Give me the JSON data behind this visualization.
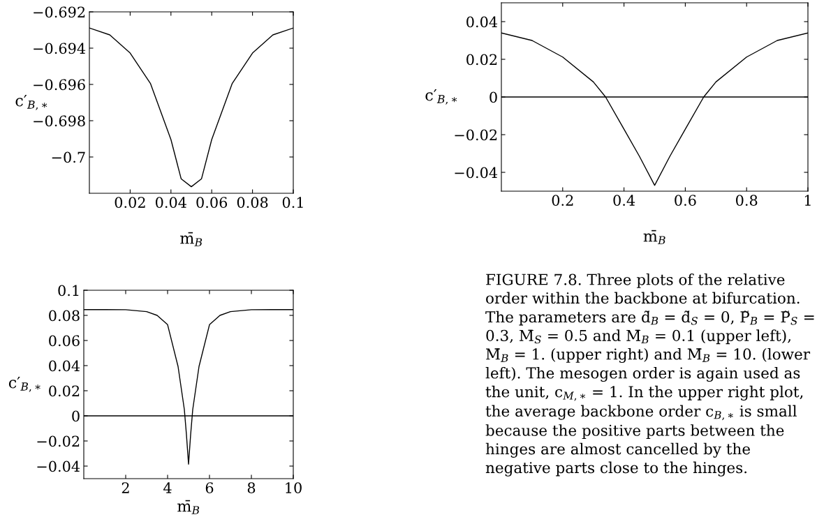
{
  "chart_data": [
    {
      "type": "line",
      "xlabel": "m̄$_{B}$",
      "ylabel": "c′$_{B,∗}$",
      "x": [
        0,
        0.01,
        0.02,
        0.03,
        0.04,
        0.045,
        0.05,
        0.055,
        0.06,
        0.07,
        0.08,
        0.09,
        0.1
      ],
      "series": [
        {
          "color": "#000000",
          "values": [
            -0.69289,
            -0.69327,
            -0.69427,
            -0.69596,
            -0.69904,
            -0.7012,
            -0.70164,
            -0.7012,
            -0.69904,
            -0.69596,
            -0.69427,
            -0.69327,
            -0.69289
          ]
        }
      ],
      "xlim": [
        0,
        0.1
      ],
      "xticks": [
        0.02,
        0.04,
        0.06,
        0.08,
        0.1
      ],
      "ylim": [
        -0.702,
        -0.692
      ],
      "yticks": [
        {
          "value": -0.692,
          "label": "−0.692"
        },
        {
          "value": -0.694,
          "label": "−0.694"
        },
        {
          "value": -0.696,
          "label": "−0.696"
        },
        {
          "value": -0.698,
          "label": "−0.698"
        },
        {
          "value": -0.7,
          "label": "−0.7"
        }
      ]
    },
    {
      "type": "line",
      "xlabel": "m̄$_{B}$",
      "ylabel": "c′$_{B,∗}$",
      "x": [
        0,
        0.1,
        0.2,
        0.3,
        0.34,
        0.4,
        0.45,
        0.5,
        0.55,
        0.6,
        0.66,
        0.7,
        0.8,
        0.9,
        1
      ],
      "series": [
        {
          "color": "#000000",
          "values": [
            0.034,
            0.03,
            0.0212,
            0.008,
            0,
            -0.0171,
            -0.0314,
            -0.0469,
            -0.0314,
            -0.0171,
            0,
            0.008,
            0.0212,
            0.03,
            0.034
          ]
        }
      ],
      "ref_lines": [
        {
          "axis": "y",
          "value": 0,
          "color": "#000000"
        }
      ],
      "xlim": [
        0,
        1
      ],
      "xticks": [
        0.2,
        0.4,
        0.6,
        0.8,
        1
      ],
      "ylim": [
        -0.05,
        0.05
      ],
      "yticks": [
        {
          "value": -0.04,
          "label": "−0.04"
        },
        {
          "value": -0.02,
          "label": "−0.02"
        },
        0,
        0.02,
        0.04
      ]
    },
    {
      "type": "line",
      "xlabel": "m̄$_{B}$",
      "ylabel": "c′$_{B,∗}$",
      "x": [
        0,
        1,
        2,
        3,
        3.5,
        4,
        4.5,
        4.8,
        4.9,
        5,
        5.1,
        5.2,
        5.5,
        6,
        6.5,
        7,
        8,
        9,
        10
      ],
      "series": [
        {
          "color": "#000000",
          "values": [
            0.0846,
            0.0846,
            0.0845,
            0.083,
            0.08,
            0.0726,
            0.0393,
            0.005,
            -0.015,
            -0.0385,
            -0.015,
            0.005,
            0.0393,
            0.0726,
            0.08,
            0.083,
            0.0845,
            0.0846,
            0.0846
          ]
        }
      ],
      "ref_lines": [
        {
          "axis": "y",
          "value": 0,
          "color": "#000000"
        }
      ],
      "xlim": [
        0,
        10
      ],
      "xticks": [
        2,
        4,
        6,
        8,
        10
      ],
      "ylim": [
        -0.05,
        0.1
      ],
      "yticks": [
        {
          "value": -0.04,
          "label": "−0.04"
        },
        {
          "value": -0.02,
          "label": "−0.02"
        },
        0,
        0.02,
        0.04,
        0.06,
        0.08,
        0.1
      ]
    },
    {
      "type": "other",
      "annotations": [
        "FIGURE 7.8. Three plots of the relative order within the backbone at bifurcation. The parameters are d̃$_{B}$ = d̃$_{S}$ = 0, P̃$_{B}$ = P̃$_{S}$ = 0.3, M̄$_{S}$ = 0.5 and M̄$_{B}$ = 0.1 (upper left), M̄$_{B}$ = 1. (upper right) and M̄$_{B}$ = 10. (lower left). The mesogen order is again used as the unit, c$_{M,∗}$ = 1. In the upper right plot, the average backbone order c$_{B,∗}$ is small because the positive parts between the hinges are almost cancelled by the negative parts close to the hinges."
      ]
    }
  ]
}
